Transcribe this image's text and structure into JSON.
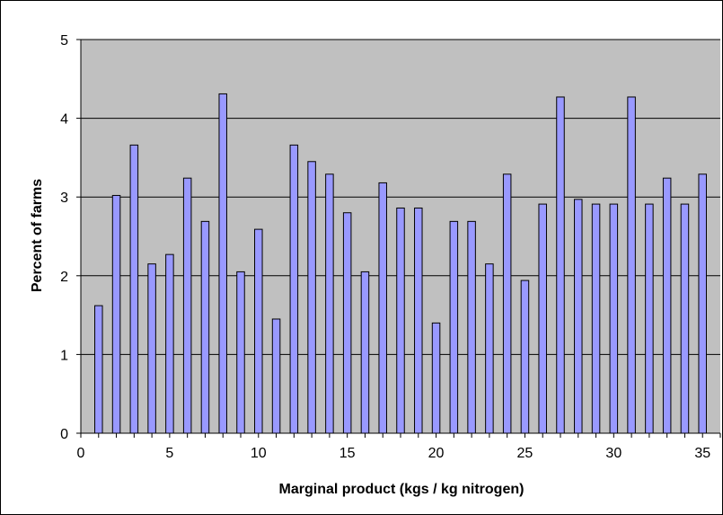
{
  "chart_data": {
    "type": "bar",
    "title": "",
    "xlabel": "Marginal product (kgs / kg nitrogen)",
    "ylabel": "Percent of farms",
    "x": [
      1,
      2,
      3,
      4,
      5,
      6,
      7,
      8,
      9,
      10,
      11,
      12,
      13,
      14,
      15,
      16,
      17,
      18,
      19,
      20,
      21,
      22,
      23,
      24,
      25,
      26,
      27,
      28,
      29,
      30,
      31,
      32,
      33,
      34,
      35
    ],
    "values": [
      1.62,
      3.02,
      3.66,
      2.15,
      2.27,
      3.24,
      2.69,
      4.31,
      2.05,
      2.59,
      1.45,
      3.66,
      3.45,
      3.29,
      2.8,
      2.05,
      3.18,
      2.86,
      2.86,
      1.4,
      2.69,
      2.69,
      2.15,
      3.29,
      1.94,
      2.91,
      4.27,
      2.97,
      2.91,
      2.91,
      4.27,
      2.91,
      3.24,
      2.91,
      3.29
    ],
    "xlim": [
      0,
      36
    ],
    "ylim": [
      0,
      5
    ],
    "x_ticks": [
      "0",
      "5",
      "10",
      "15",
      "20",
      "25",
      "30",
      "35"
    ],
    "y_ticks": [
      "0",
      "1",
      "2",
      "3",
      "4",
      "5"
    ],
    "grid": "horizontal",
    "legend": "none",
    "colors": {
      "bar_fill": "#9999ff",
      "bar_stroke": "#000000",
      "plot_background": "#c0c0c0",
      "gridline": "#000000"
    }
  }
}
